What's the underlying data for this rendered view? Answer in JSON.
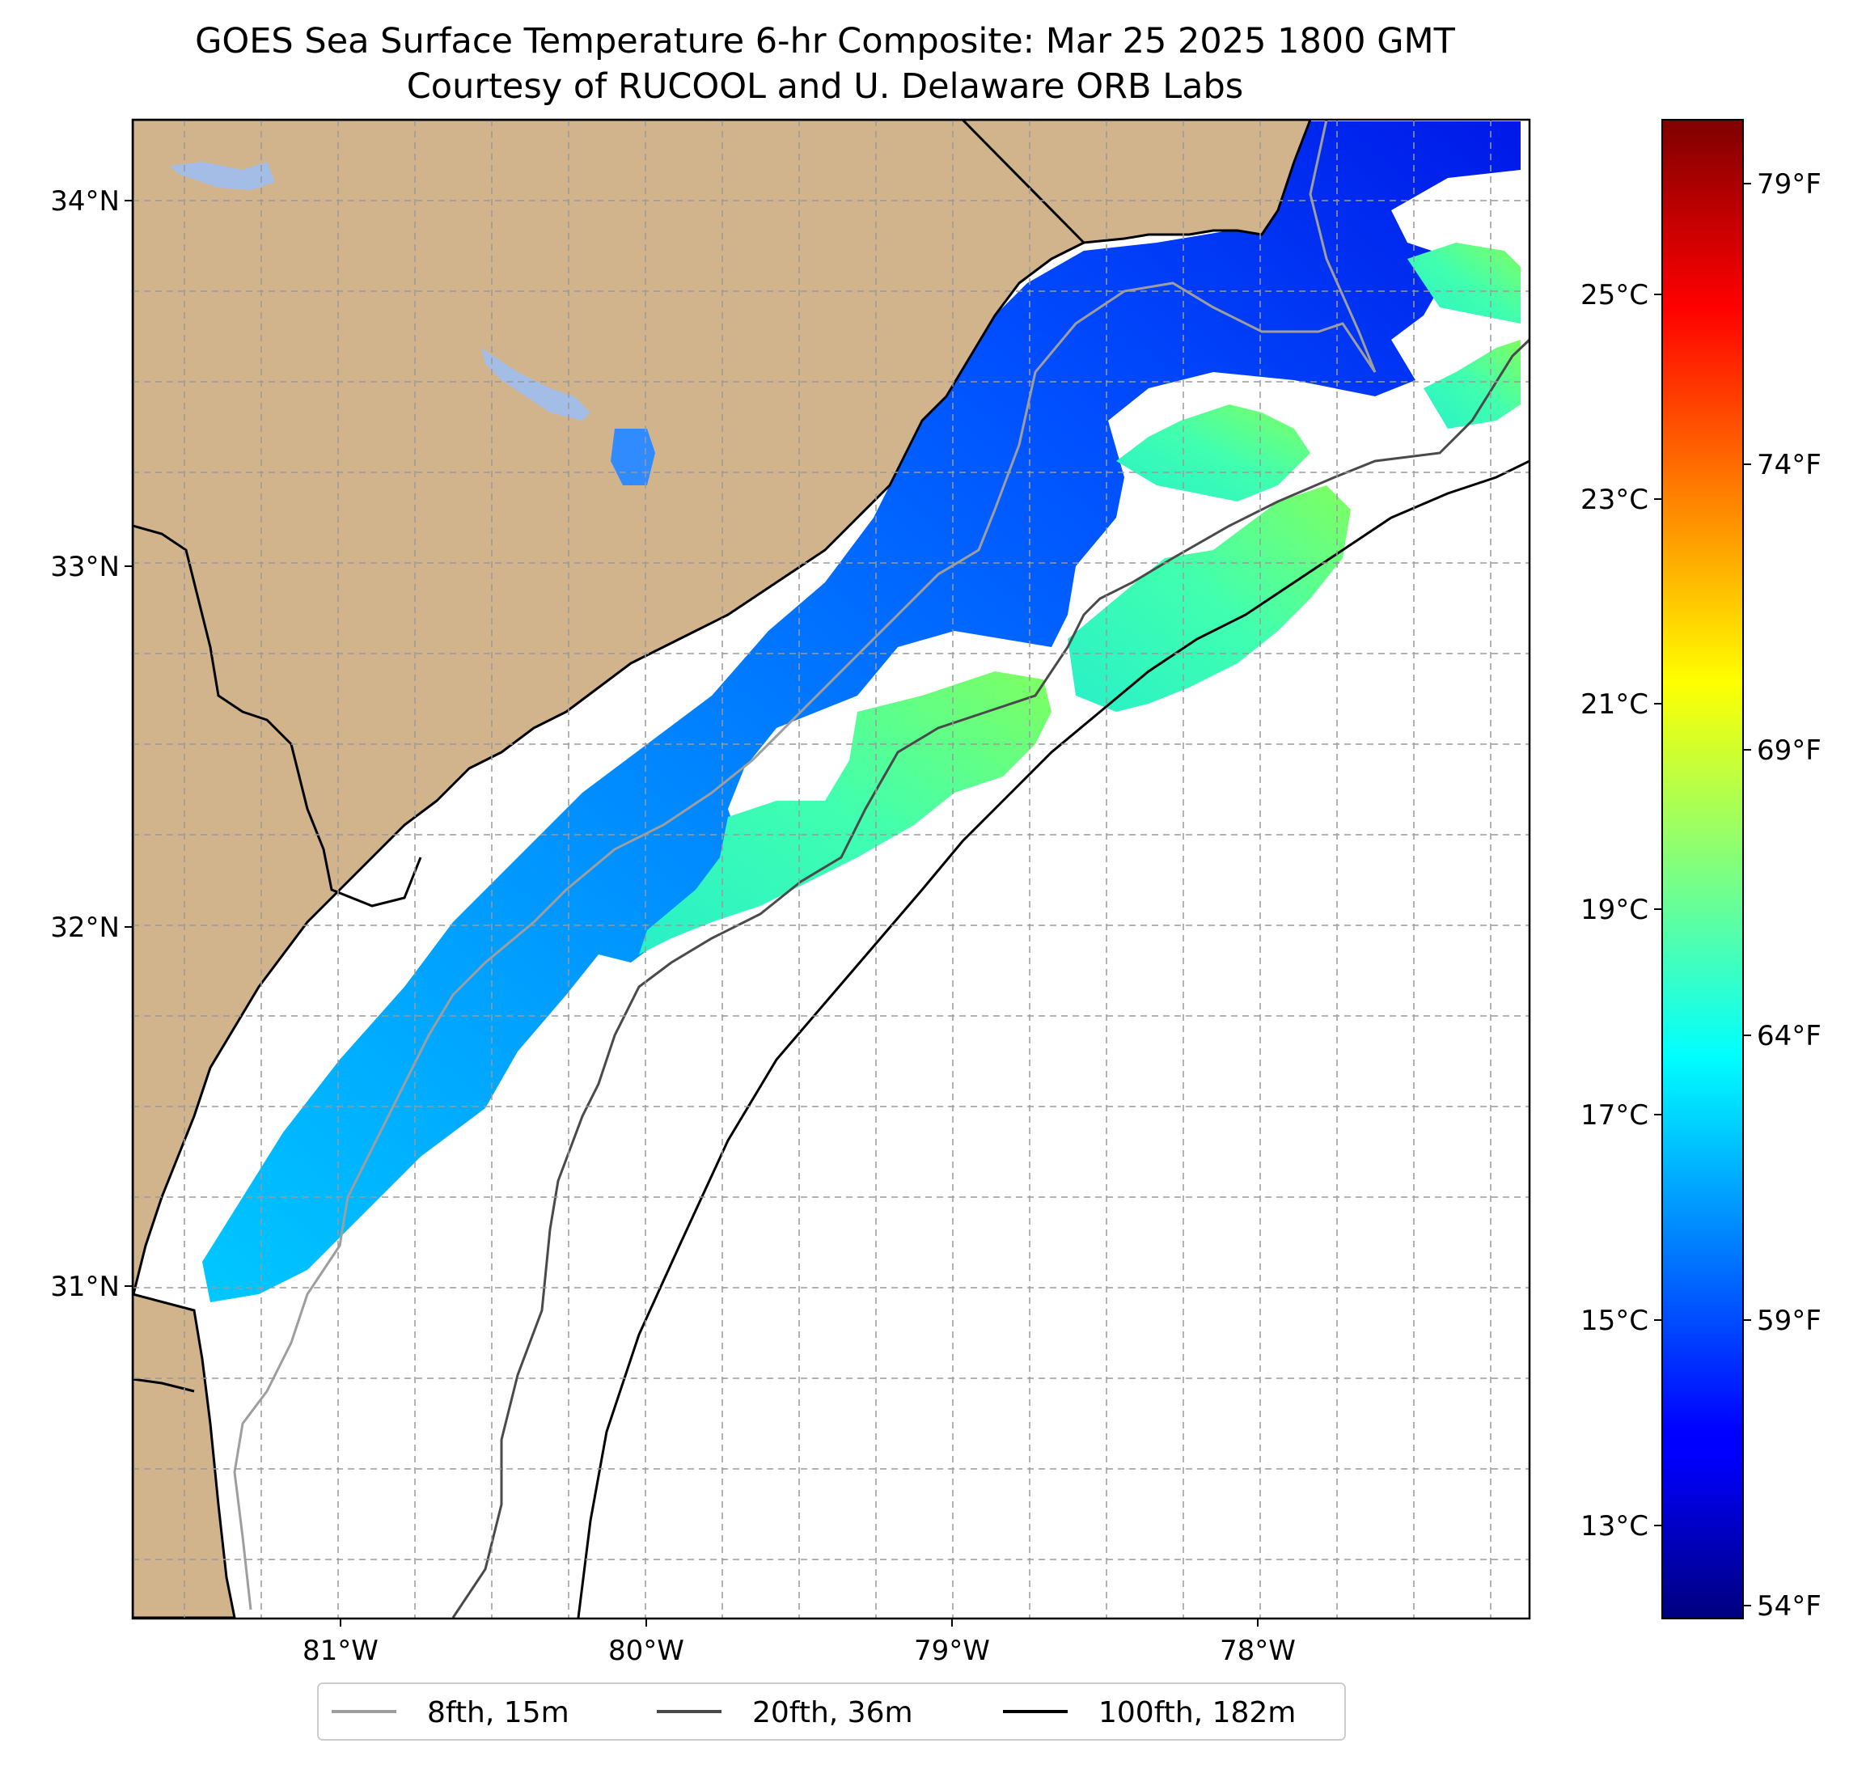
{
  "title_line1": "GOES Sea Surface Temperature 6-hr Composite: Mar 25 2025 1800 GMT",
  "title_line2": "Courtesy of RUCOOL and U. Delaware ORB Labs",
  "colors": {
    "land": "#d2b48c",
    "ocean_nodata": "#ffffff",
    "lakes": "#a3bde6",
    "isobath_15m": "#9e9e9e",
    "isobath_36m": "#4a4a4a",
    "isobath_182m": "#000000",
    "gridline": "#9a9a9a"
  },
  "map": {
    "lat_labels": [
      "34°N",
      "33°N",
      "32°N",
      "31°N"
    ],
    "lon_labels": [
      "81°W",
      "80°W",
      "79°W",
      "78°W"
    ],
    "lon_range": [
      -81.68,
      -77.14
    ],
    "lat_range": [
      30.07,
      34.22
    ]
  },
  "colorbar": {
    "celsius_labels": [
      "25°C",
      "23°C",
      "21°C",
      "19°C",
      "17°C",
      "15°C",
      "13°C"
    ],
    "fahrenheit_labels": [
      "79°F",
      "74°F",
      "69°F",
      "64°F",
      "59°F",
      "54°F"
    ],
    "range_celsius": [
      12.2,
      26.8
    ],
    "colormap": "jet"
  },
  "legend": {
    "items": [
      {
        "label": "8fth, 15m",
        "color": "#9e9e9e"
      },
      {
        "label": "20fth, 36m",
        "color": "#4a4a4a"
      },
      {
        "label": "100fth, 182m",
        "color": "#000000"
      }
    ]
  }
}
